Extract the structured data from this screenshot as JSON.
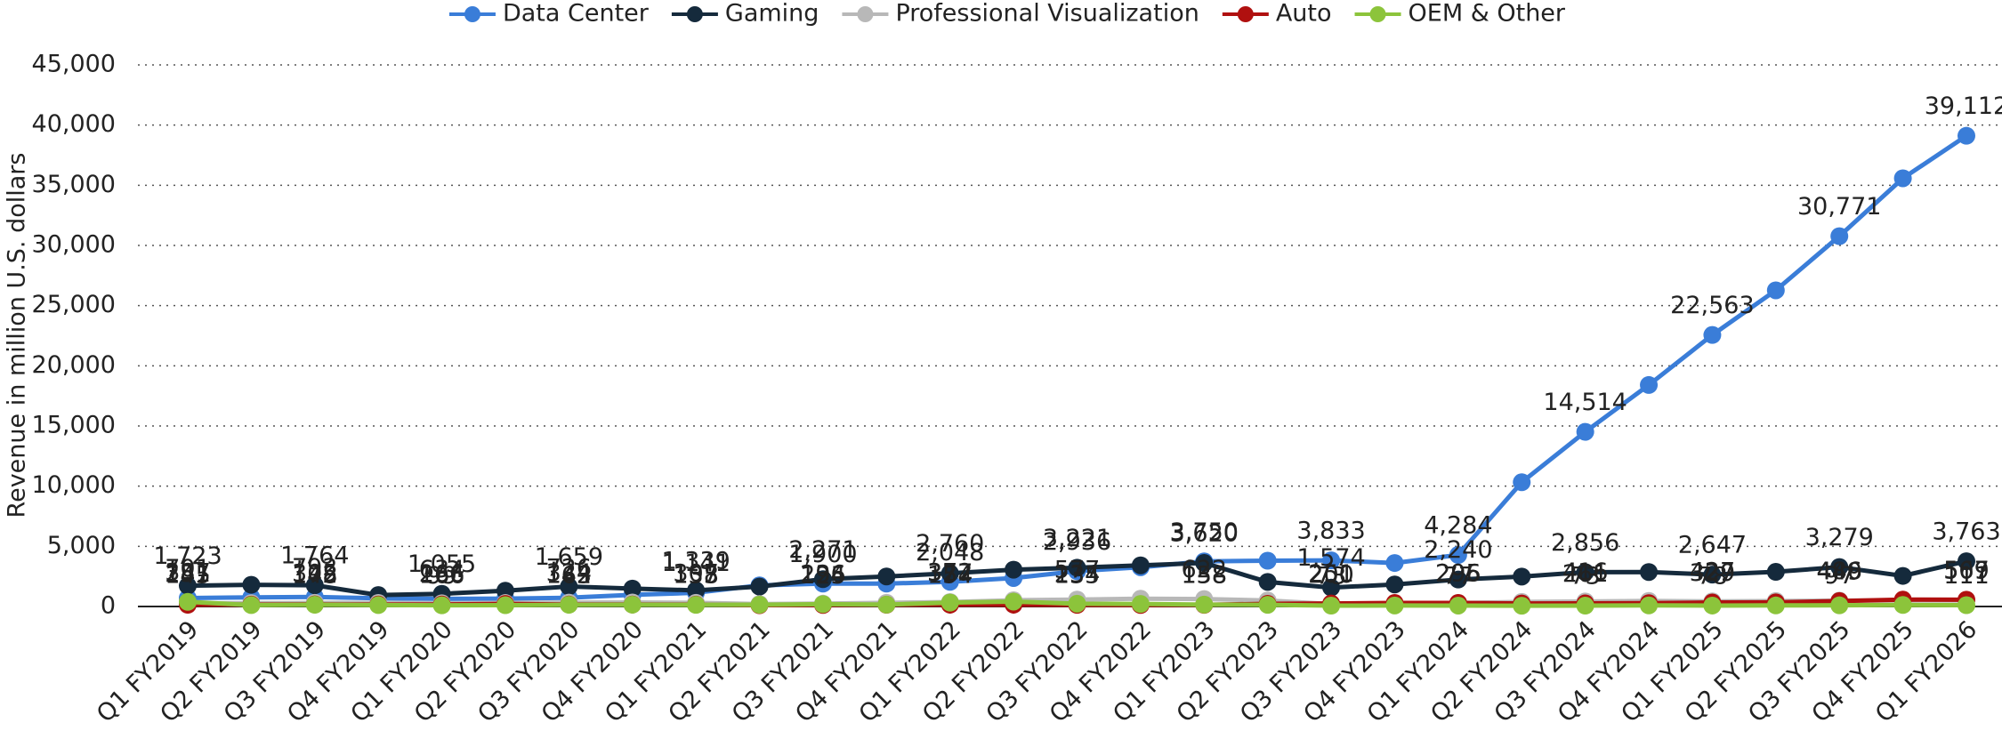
{
  "chart_data": {
    "type": "line",
    "y_label": "Revenue in million U.S. dollars",
    "categories": [
      "Q1 FY2019",
      "Q2 FY2019",
      "Q3 FY2019",
      "Q4 FY2019",
      "Q1 FY2020",
      "Q2 FY2020",
      "Q3 FY2020",
      "Q4 FY2020",
      "Q1 FY2021",
      "Q2 FY2021",
      "Q3 FY2021",
      "Q4 FY2021",
      "Q1 FY2022",
      "Q2 FY2022",
      "Q3 FY2022",
      "Q4 FY2022",
      "Q1 FY2023",
      "Q2 FY2023",
      "Q3 FY2023",
      "Q4 FY2023",
      "Q1 FY2024",
      "Q2 FY2024",
      "Q3 FY2024",
      "Q4 FY2024",
      "Q1 FY2025",
      "Q2 FY2025",
      "Q3 FY2025",
      "Q4 FY2025",
      "Q1 FY2026"
    ],
    "series": [
      {
        "name": "Data Center",
        "color": "#3a7dd8",
        "values": [
          701,
          760,
          792,
          679,
          634,
          655,
          726,
          968,
          1141,
          1752,
          1900,
          1903,
          2048,
          2366,
          2936,
          3263,
          3750,
          3806,
          3833,
          3616,
          4284,
          10323,
          14514,
          18404,
          22563,
          26272,
          30771,
          35580,
          39112
        ],
        "value_labels": [
          "701",
          null,
          "792",
          null,
          "634",
          null,
          "726",
          null,
          "1,141",
          null,
          "1,900",
          null,
          "2,048",
          null,
          "2,936",
          null,
          "3,750",
          null,
          "3,833",
          null,
          "4,284",
          null,
          "14,514",
          null,
          "22,563",
          null,
          "30,771",
          null,
          "39,112"
        ]
      },
      {
        "name": "Gaming",
        "color": "#152a3c",
        "values": [
          1723,
          1805,
          1764,
          954,
          1055,
          1313,
          1659,
          1491,
          1339,
          1654,
          2271,
          2495,
          2760,
          3061,
          3221,
          3420,
          3620,
          2042,
          1574,
          1831,
          2240,
          2486,
          2856,
          2865,
          2647,
          2880,
          3279,
          2544,
          3763
        ],
        "value_labels": [
          "1,723",
          null,
          "1,764",
          null,
          "1,055",
          null,
          "1,659",
          null,
          "1,339",
          null,
          "2,271",
          null,
          "2,760",
          null,
          "3,221",
          null,
          "3,620",
          null,
          "1,574",
          null,
          "2,240",
          null,
          "2,856",
          null,
          "2,647",
          null,
          "3,279",
          null,
          "3,763"
        ]
      },
      {
        "name": "Professional Visualization",
        "color": "#b8b8b8",
        "values": [
          251,
          281,
          305,
          293,
          266,
          291,
          324,
          331,
          307,
          203,
          236,
          307,
          372,
          519,
          577,
          643,
          622,
          496,
          200,
          226,
          295,
          379,
          416,
          463,
          427,
          454,
          486,
          511,
          509
        ],
        "value_labels": [
          "251",
          null,
          "305",
          null,
          "266",
          null,
          "324",
          null,
          "307",
          null,
          "236",
          null,
          "372",
          null,
          "577",
          null,
          "622",
          null,
          "200",
          null,
          "295",
          null,
          "416",
          null,
          "427",
          null,
          "486",
          null,
          "509"
        ]
      },
      {
        "name": "Auto",
        "color": "#b0100f",
        "values": [
          145,
          161,
          172,
          163,
          166,
          209,
          162,
          163,
          155,
          111,
          125,
          145,
          154,
          152,
          135,
          125,
          138,
          220,
          251,
          294,
          296,
          253,
          261,
          281,
          329,
          346,
          449,
          570,
          567
        ],
        "value_labels": [
          "145",
          null,
          "172",
          null,
          "166",
          null,
          "162",
          null,
          "155",
          null,
          "125",
          null,
          "154",
          null,
          "135",
          null,
          "138",
          null,
          "251",
          null,
          "296",
          null,
          "261",
          null,
          "329",
          null,
          "449",
          null,
          "567"
        ]
      },
      {
        "name": "OEM & Other",
        "color": "#8cc43b",
        "values": [
          387,
          116,
          148,
          116,
          99,
          111,
          143,
          152,
          138,
          146,
          194,
          153,
          327,
          409,
          234,
          209,
          158,
          140,
          73,
          84,
          77,
          66,
          73,
          90,
          78,
          88,
          97,
          126,
          111
        ],
        "value_labels": [
          "387",
          null,
          "148",
          null,
          "99",
          null,
          "143",
          null,
          "138",
          null,
          "194",
          null,
          "327",
          null,
          "234",
          null,
          "158",
          null,
          "73",
          null,
          "77",
          null,
          "73",
          null,
          "78",
          null,
          "97",
          null,
          "111"
        ]
      }
    ],
    "ylim": [
      0,
      45000
    ],
    "yticks": [
      0,
      {
        "value": 5000,
        "label": "5,000"
      },
      {
        "value": 10000,
        "label": "10,000"
      },
      {
        "value": 15000,
        "label": "15,000"
      },
      {
        "value": 20000,
        "label": "20,000"
      },
      {
        "value": 25000,
        "label": "25,000"
      },
      {
        "value": 30000,
        "label": "30,000"
      },
      {
        "value": 35000,
        "label": "35,000"
      },
      {
        "value": 40000,
        "label": "40,000"
      },
      {
        "value": 45000,
        "label": "45,000"
      }
    ],
    "grid": true,
    "legend": "top"
  }
}
